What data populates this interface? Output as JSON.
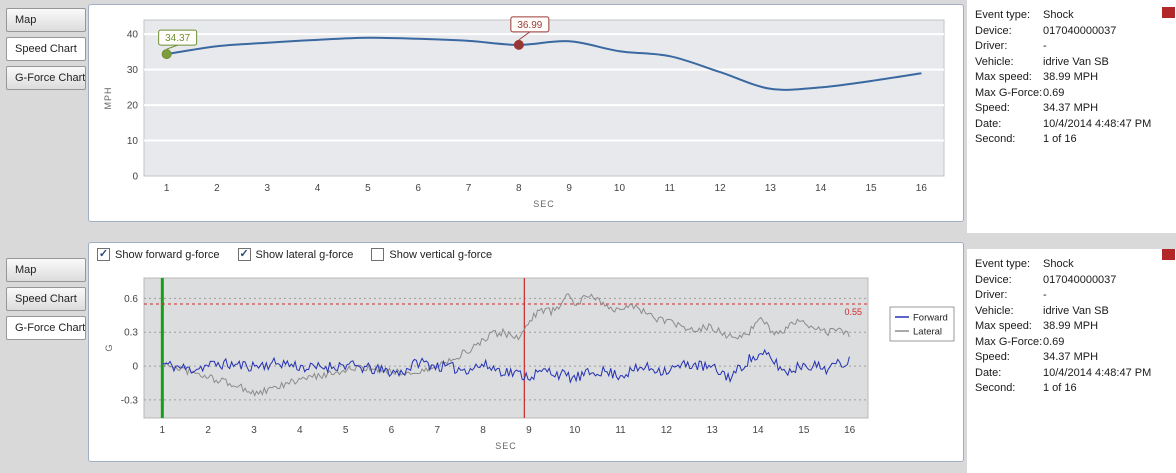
{
  "tabs_top": [
    {
      "label": "Map",
      "selected": false
    },
    {
      "label": "Speed Chart",
      "selected": true
    },
    {
      "label": "G-Force Chart",
      "selected": false
    }
  ],
  "tabs_bottom": [
    {
      "label": "Map",
      "selected": false
    },
    {
      "label": "Speed Chart",
      "selected": false
    },
    {
      "label": "G-Force Chart",
      "selected": true
    }
  ],
  "event_info": {
    "rows": [
      {
        "label": "Event type:",
        "value": "Shock"
      },
      {
        "label": "Device:",
        "value": "017040000037"
      },
      {
        "label": "Driver:",
        "value": "-"
      },
      {
        "label": "Vehicle:",
        "value": "idrive Van SB"
      },
      {
        "label": "Max speed:",
        "value": "38.99 MPH"
      },
      {
        "label": "Max G-Force:",
        "value": "0.69"
      },
      {
        "label": "Speed:",
        "value": "34.37 MPH"
      },
      {
        "label": "Date:",
        "value": "10/4/2014 4:48:47 PM"
      },
      {
        "label": "Second:",
        "value": "1 of 16"
      }
    ]
  },
  "gforce_controls": [
    {
      "label": "Show forward g-force",
      "checked": true
    },
    {
      "label": "Show lateral g-force",
      "checked": true
    },
    {
      "label": "Show vertical g-force",
      "checked": false
    }
  ],
  "chart_data": [
    {
      "type": "line",
      "name": "speed-vs-time",
      "xlabel": "SEC",
      "ylabel": "MPH",
      "x": [
        1,
        2,
        3,
        4,
        5,
        6,
        7,
        8,
        9,
        10,
        11,
        12,
        13,
        14,
        15,
        16
      ],
      "values": [
        34.37,
        36.6,
        37.6,
        38.4,
        38.99,
        38.7,
        38.1,
        36.99,
        38.0,
        35.2,
        33.8,
        29.3,
        24.6,
        25.0,
        26.8,
        29.0
      ],
      "xticks": [
        1,
        2,
        3,
        4,
        5,
        6,
        7,
        8,
        9,
        10,
        11,
        12,
        13,
        14,
        15,
        16
      ],
      "yticks": [
        0,
        10,
        20,
        30,
        40
      ],
      "xlim": [
        0.55,
        16.45
      ],
      "ylim": [
        0,
        44
      ],
      "grid": "horizontal-white",
      "plot_bg": "#e7e9ed",
      "line_color": "#3a68a0",
      "annotations": [
        {
          "sec": 1,
          "value": 34.37,
          "label": "34.37",
          "color": "#6f8f33",
          "fill": "#7f9c3c",
          "offset": 9
        },
        {
          "sec": 8,
          "value": 36.99,
          "label": "36.99",
          "color": "#9c3a38",
          "fill": "#953735",
          "offset": 13
        }
      ]
    },
    {
      "type": "line",
      "name": "gforce-vs-time",
      "xlabel": "SEC",
      "ylabel": "G",
      "xticks": [
        1,
        2,
        3,
        4,
        5,
        6,
        7,
        8,
        9,
        10,
        11,
        12,
        13,
        14,
        15,
        16
      ],
      "yticks": [
        -0.3,
        0,
        0.3,
        0.6
      ],
      "xlim": [
        0.6,
        16.4
      ],
      "ylim": [
        -0.46,
        0.78
      ],
      "grid": "dotted-horizontal",
      "plot_bg": "#dcdddf",
      "threshold": {
        "value": 0.55,
        "label": "0.55",
        "color": "#cc2a2a"
      },
      "event_marker": {
        "sec": 8.9,
        "color": "#cc2a2a"
      },
      "start_marker": {
        "sec": 1,
        "color": "#15a015"
      },
      "legend_position": "right",
      "legend": [
        {
          "name": "Forward",
          "color": "#2432b4"
        },
        {
          "name": "Lateral",
          "color": "#8c8c8c"
        }
      ],
      "series": [
        {
          "name": "Forward",
          "color": "#2432b4",
          "noise_amplitude": 0.05,
          "seed": 11,
          "keypoints": [
            [
              1,
              0.02
            ],
            [
              1.6,
              -0.03
            ],
            [
              2.2,
              0.02
            ],
            [
              3,
              0.0
            ],
            [
              3.6,
              0.03
            ],
            [
              4.2,
              -0.02
            ],
            [
              5,
              0.01
            ],
            [
              5.6,
              -0.03
            ],
            [
              6.2,
              -0.06
            ],
            [
              6.6,
              0.04
            ],
            [
              7,
              0.0
            ],
            [
              7.6,
              -0.03
            ],
            [
              8,
              0.01
            ],
            [
              8.4,
              -0.04
            ],
            [
              9,
              -0.09
            ],
            [
              9.4,
              -0.04
            ],
            [
              10,
              -0.11
            ],
            [
              10.5,
              -0.04
            ],
            [
              11,
              -0.08
            ],
            [
              11.5,
              -0.01
            ],
            [
              12,
              -0.04
            ],
            [
              12.5,
              0.02
            ],
            [
              13,
              -0.02
            ],
            [
              13.4,
              -0.1
            ],
            [
              13.8,
              0.06
            ],
            [
              14.2,
              0.1
            ],
            [
              14.6,
              -0.06
            ],
            [
              15,
              0.02
            ],
            [
              15.5,
              -0.02
            ],
            [
              16,
              0.05
            ]
          ]
        },
        {
          "name": "Lateral",
          "color": "#8c8c8c",
          "noise_amplitude": 0.032,
          "seed": 97,
          "keypoints": [
            [
              1,
              0.02
            ],
            [
              1.4,
              -0.02
            ],
            [
              1.8,
              -0.08
            ],
            [
              2.2,
              -0.12
            ],
            [
              2.6,
              -0.17
            ],
            [
              3,
              -0.24
            ],
            [
              3.3,
              -0.22
            ],
            [
              3.7,
              -0.16
            ],
            [
              4,
              -0.12
            ],
            [
              4.4,
              -0.09
            ],
            [
              4.8,
              -0.05
            ],
            [
              5.2,
              -0.02
            ],
            [
              5.6,
              -0.03
            ],
            [
              6,
              -0.04
            ],
            [
              6.4,
              -0.07
            ],
            [
              6.8,
              -0.03
            ],
            [
              7.1,
              0.02
            ],
            [
              7.4,
              0.08
            ],
            [
              7.7,
              0.14
            ],
            [
              8,
              0.22
            ],
            [
              8.2,
              0.28
            ],
            [
              8.45,
              0.3
            ],
            [
              8.7,
              0.24
            ],
            [
              8.9,
              0.3
            ],
            [
              9.1,
              0.45
            ],
            [
              9.3,
              0.5
            ],
            [
              9.5,
              0.48
            ],
            [
              9.7,
              0.55
            ],
            [
              9.85,
              0.63
            ],
            [
              10,
              0.55
            ],
            [
              10.2,
              0.6
            ],
            [
              10.4,
              0.62
            ],
            [
              10.6,
              0.55
            ],
            [
              10.8,
              0.5
            ],
            [
              11,
              0.52
            ],
            [
              11.2,
              0.55
            ],
            [
              11.5,
              0.48
            ],
            [
              11.8,
              0.42
            ],
            [
              12,
              0.4
            ],
            [
              12.3,
              0.35
            ],
            [
              12.6,
              0.31
            ],
            [
              12.9,
              0.35
            ],
            [
              13.2,
              0.3
            ],
            [
              13.5,
              0.24
            ],
            [
              13.8,
              0.3
            ],
            [
              14.1,
              0.42
            ],
            [
              14.35,
              0.28
            ],
            [
              14.6,
              0.33
            ],
            [
              14.9,
              0.4
            ],
            [
              15.2,
              0.33
            ],
            [
              15.5,
              0.3
            ],
            [
              15.8,
              0.32
            ],
            [
              16,
              0.28
            ]
          ]
        }
      ]
    }
  ]
}
